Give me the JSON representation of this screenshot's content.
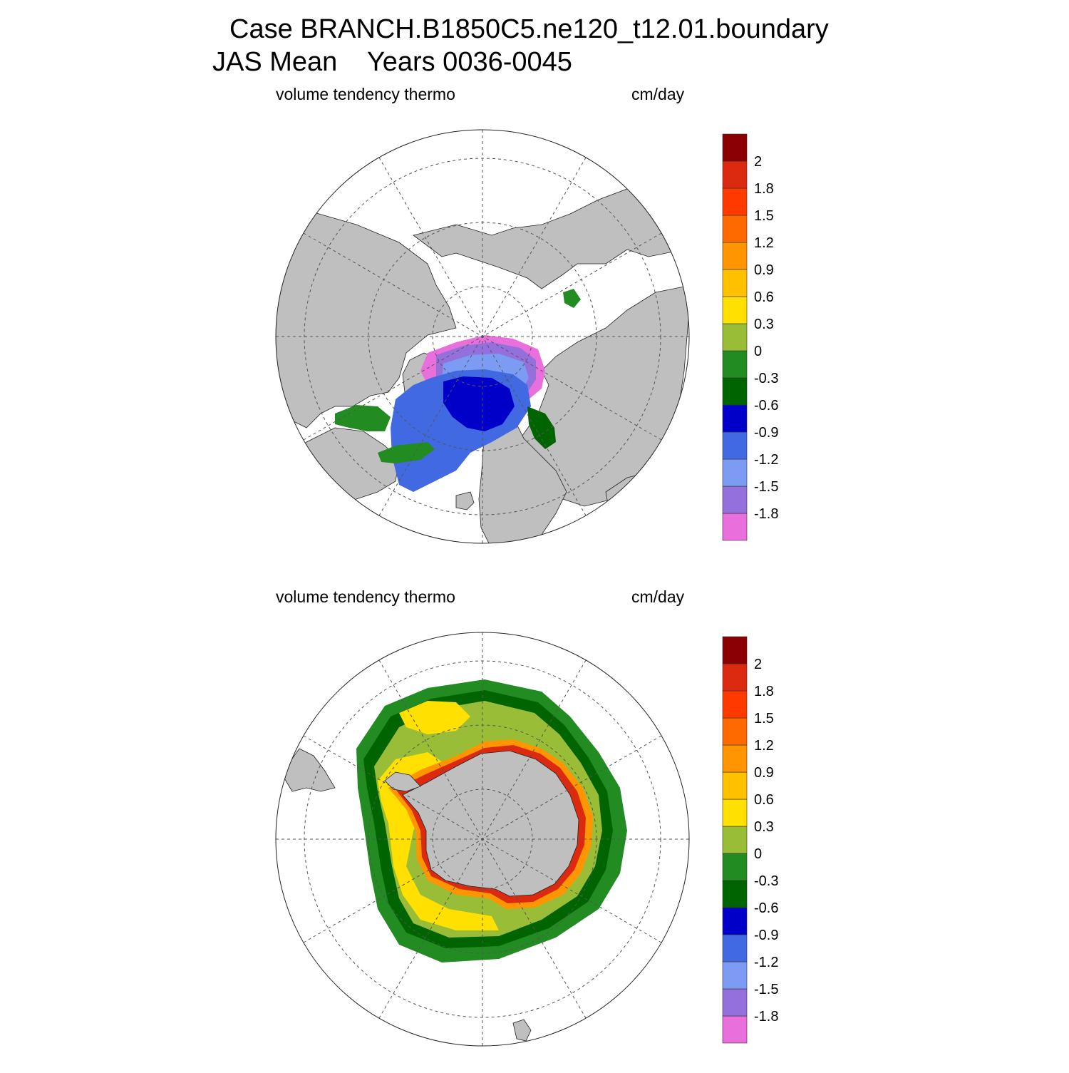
{
  "title_line1": "Case BRANCH.B1850C5.ne120_t12.01.boundary",
  "title_line2": "JAS Mean    Years 0036-0045",
  "colors": {
    "land": "#bfbfbf",
    "ocean": "#ffffff",
    "grid": "#555555",
    "outline": "#222222"
  },
  "colorbar": {
    "colors": [
      "#e86fdc",
      "#9370db",
      "#7b9cf2",
      "#4169e1",
      "#0000c8",
      "#006400",
      "#228b22",
      "#9abd37",
      "#ffe000",
      "#ffc000",
      "#ff9500",
      "#ff6a00",
      "#ff3a00",
      "#dc2a10",
      "#8b0000"
    ],
    "labels": [
      "-1.8",
      "-1.5",
      "-1.2",
      "-0.9",
      "-0.6",
      "-0.3",
      "0",
      "0.3",
      "0.6",
      "0.9",
      "1.2",
      "1.5",
      "1.8",
      "2"
    ]
  },
  "panels": [
    {
      "id": "north",
      "left_label": "volume tendency thermo",
      "right_label": "cm/day"
    },
    {
      "id": "south",
      "left_label": "volume tendency thermo",
      "right_label": "cm/day"
    }
  ]
}
